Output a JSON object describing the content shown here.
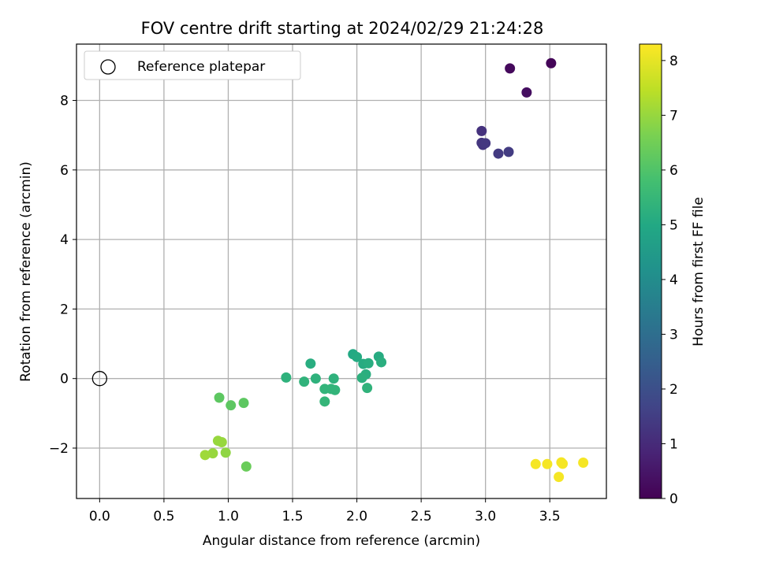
{
  "chart_data": {
    "type": "scatter",
    "title": "FOV centre drift starting at 2024/02/29 21:24:28",
    "xlabel": "Angular distance from reference (arcmin)",
    "ylabel": "Rotation from reference (arcmin)",
    "colorbar_label": "Hours from first FF file",
    "xlim": [
      -0.18,
      3.94
    ],
    "ylim": [
      -3.45,
      9.62
    ],
    "clim": [
      0,
      8.3
    ],
    "xticks": [
      0.0,
      0.5,
      1.0,
      1.5,
      2.0,
      2.5,
      3.0,
      3.5
    ],
    "xtick_labels": [
      "0.0",
      "0.5",
      "1.0",
      "1.5",
      "2.0",
      "2.5",
      "3.0",
      "3.5"
    ],
    "yticks": [
      -2,
      0,
      2,
      4,
      6,
      8
    ],
    "ytick_labels": [
      "−2",
      "0",
      "2",
      "4",
      "6",
      "8"
    ],
    "cticks": [
      0,
      1,
      2,
      3,
      4,
      5,
      6,
      7,
      8
    ],
    "ctick_labels": [
      "0",
      "1",
      "2",
      "3",
      "4",
      "5",
      "6",
      "7",
      "8"
    ],
    "grid": true,
    "legend": {
      "placement": "top-left",
      "entries": [
        "Reference platepar"
      ]
    },
    "reference_point": {
      "x": 0.0,
      "y": 0.0
    },
    "colormap": "viridis",
    "points": [
      {
        "x": 3.51,
        "y": 9.07,
        "c": 0.1
      },
      {
        "x": 3.19,
        "y": 8.92,
        "c": 0.2
      },
      {
        "x": 3.32,
        "y": 8.23,
        "c": 0.3
      },
      {
        "x": 2.97,
        "y": 7.12,
        "c": 1.2
      },
      {
        "x": 2.97,
        "y": 6.78,
        "c": 1.3
      },
      {
        "x": 2.98,
        "y": 6.72,
        "c": 1.3
      },
      {
        "x": 3.0,
        "y": 6.77,
        "c": 1.35
      },
      {
        "x": 3.1,
        "y": 6.47,
        "c": 1.4
      },
      {
        "x": 3.18,
        "y": 6.52,
        "c": 1.45
      },
      {
        "x": 1.97,
        "y": 0.7,
        "c": 5.0
      },
      {
        "x": 2.0,
        "y": 0.62,
        "c": 5.05
      },
      {
        "x": 2.17,
        "y": 0.63,
        "c": 5.1
      },
      {
        "x": 1.64,
        "y": 0.43,
        "c": 5.15
      },
      {
        "x": 2.05,
        "y": 0.42,
        "c": 5.1
      },
      {
        "x": 2.09,
        "y": 0.44,
        "c": 5.15
      },
      {
        "x": 2.19,
        "y": 0.47,
        "c": 5.2
      },
      {
        "x": 2.07,
        "y": 0.12,
        "c": 5.2
      },
      {
        "x": 1.45,
        "y": 0.03,
        "c": 5.3
      },
      {
        "x": 1.68,
        "y": 0.0,
        "c": 5.3
      },
      {
        "x": 1.82,
        "y": 0.0,
        "c": 5.3
      },
      {
        "x": 2.04,
        "y": 0.02,
        "c": 5.25
      },
      {
        "x": 1.59,
        "y": -0.09,
        "c": 5.35
      },
      {
        "x": 1.75,
        "y": -0.3,
        "c": 5.4
      },
      {
        "x": 1.8,
        "y": -0.3,
        "c": 5.4
      },
      {
        "x": 1.83,
        "y": -0.33,
        "c": 5.4
      },
      {
        "x": 2.08,
        "y": -0.27,
        "c": 5.35
      },
      {
        "x": 1.75,
        "y": -0.66,
        "c": 5.45
      },
      {
        "x": 0.93,
        "y": -0.55,
        "c": 6.2
      },
      {
        "x": 1.12,
        "y": -0.7,
        "c": 6.2
      },
      {
        "x": 1.02,
        "y": -0.77,
        "c": 6.2
      },
      {
        "x": 1.14,
        "y": -2.53,
        "c": 6.4
      },
      {
        "x": 0.92,
        "y": -1.79,
        "c": 7.0
      },
      {
        "x": 0.95,
        "y": -1.83,
        "c": 7.0
      },
      {
        "x": 0.88,
        "y": -2.15,
        "c": 7.0
      },
      {
        "x": 0.82,
        "y": -2.2,
        "c": 7.1
      },
      {
        "x": 0.98,
        "y": -2.13,
        "c": 6.9
      },
      {
        "x": 3.39,
        "y": -2.46,
        "c": 8.2
      },
      {
        "x": 3.48,
        "y": -2.46,
        "c": 8.2
      },
      {
        "x": 3.59,
        "y": -2.41,
        "c": 8.2
      },
      {
        "x": 3.6,
        "y": -2.45,
        "c": 8.2
      },
      {
        "x": 3.76,
        "y": -2.42,
        "c": 8.2
      },
      {
        "x": 3.57,
        "y": -2.83,
        "c": 8.2
      }
    ]
  }
}
